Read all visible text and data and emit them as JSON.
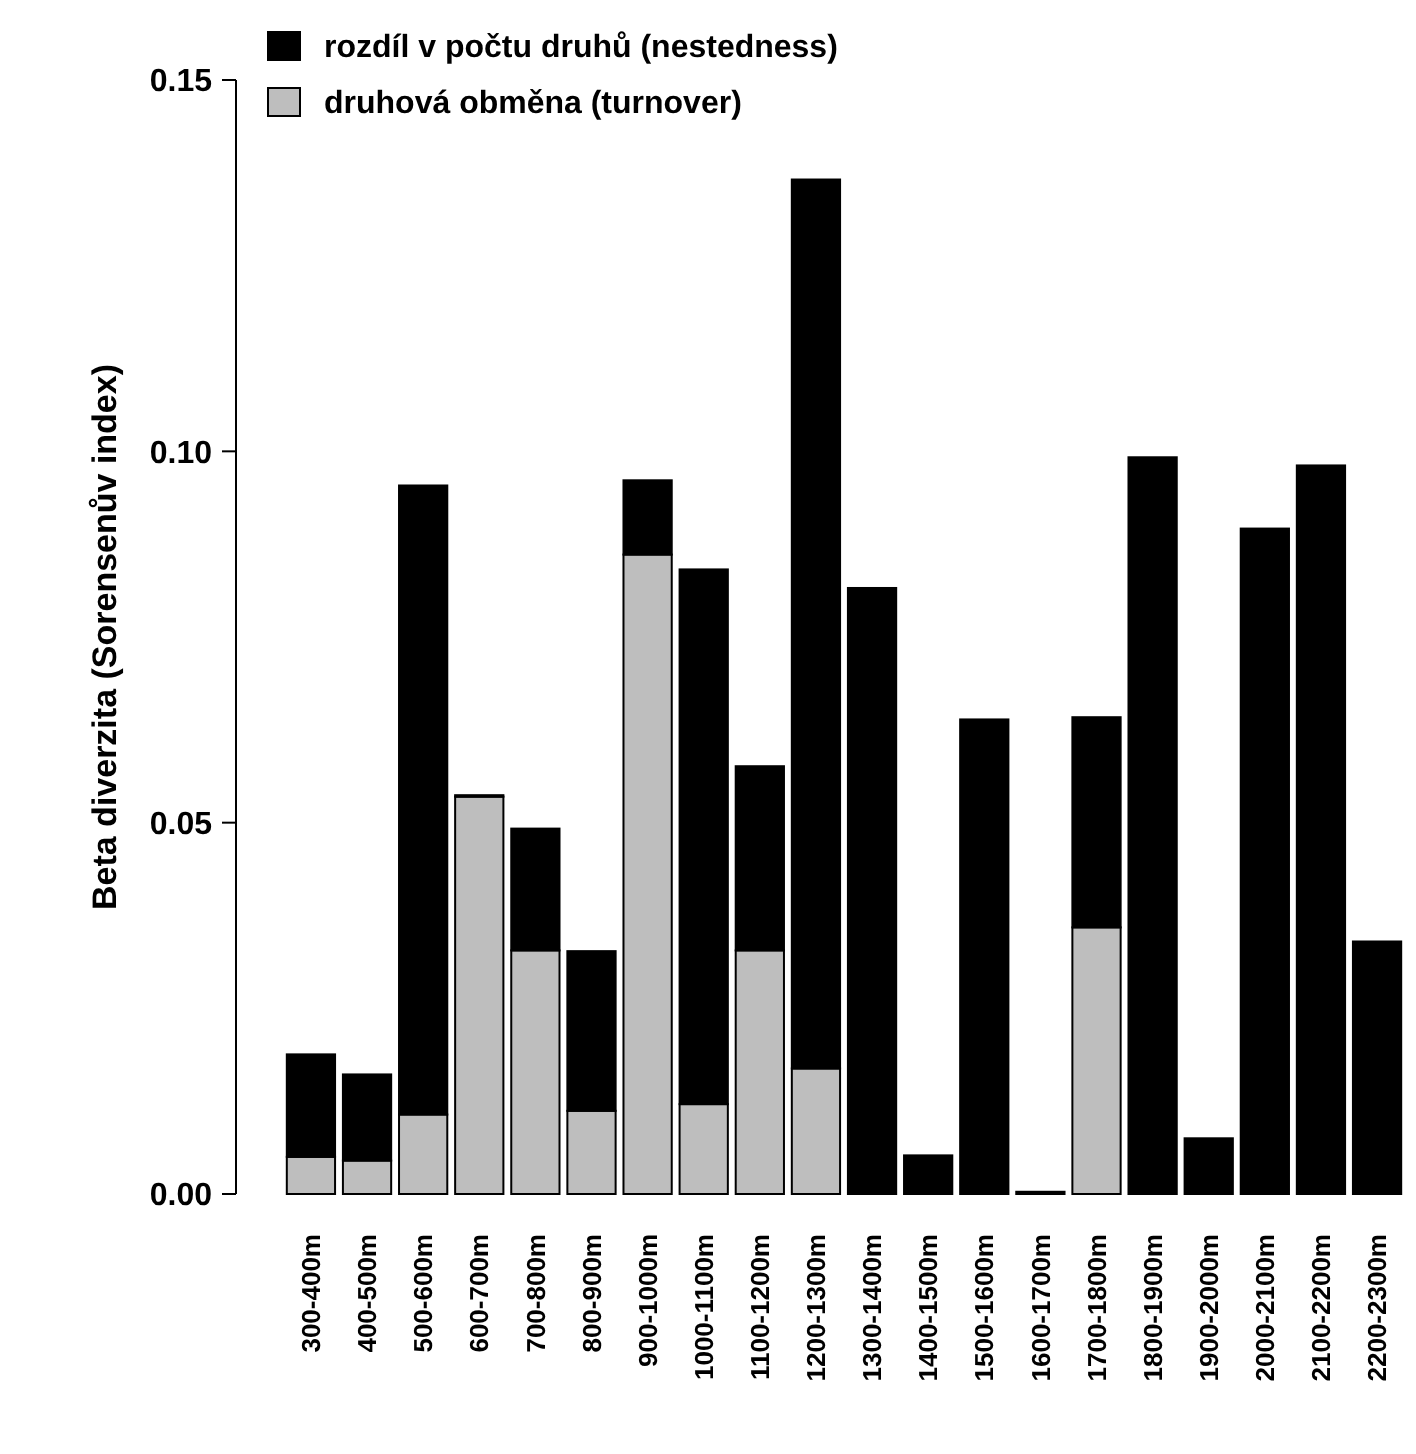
{
  "chart_data": {
    "type": "bar",
    "stacked": true,
    "ylabel": "Beta diverzita (Sorensenův index)",
    "categories": [
      "300-400m",
      "400-500m",
      "500-600m",
      "600-700m",
      "700-800m",
      "800-900m",
      "900-1000m",
      "1000-1100m",
      "1100-1200m",
      "1200-1300m",
      "1300-1400m",
      "1400-1500m",
      "1500-1600m",
      "1600-1700m",
      "1700-1800m",
      "1800-1900m",
      "1900-2000m",
      "2000-2100m",
      "2100-2200m",
      "2200-2300m"
    ],
    "series": [
      {
        "name": "druhová obměna (turnover)",
        "color": "#bebebe",
        "values": [
          0.005,
          0.0045,
          0.0107,
          0.0535,
          0.0328,
          0.0112,
          0.0861,
          0.0121,
          0.0328,
          0.0169,
          0,
          0,
          0,
          0,
          0.0359,
          0,
          0,
          0,
          0,
          0
        ]
      },
      {
        "name": "rozdíl v počtu druhů (nestedness)",
        "color": "#000000",
        "values": [
          0.0138,
          0.0116,
          0.0847,
          0.0002,
          0.0164,
          0.0215,
          0.01,
          0.072,
          0.0248,
          0.1197,
          0.0816,
          0.0052,
          0.0639,
          0.0003,
          0.0283,
          0.0992,
          0.0075,
          0.0896,
          0.0981,
          0.034
        ]
      }
    ],
    "ylim": [
      0,
      0.15
    ],
    "yticks": [
      {
        "value": 0,
        "label": "0.00"
      },
      {
        "value": 0.05,
        "label": "0.05"
      },
      {
        "value": 0.1,
        "label": "0.10"
      },
      {
        "value": 0.15,
        "label": "0.15"
      }
    ],
    "grid": false,
    "legend": "top left"
  }
}
